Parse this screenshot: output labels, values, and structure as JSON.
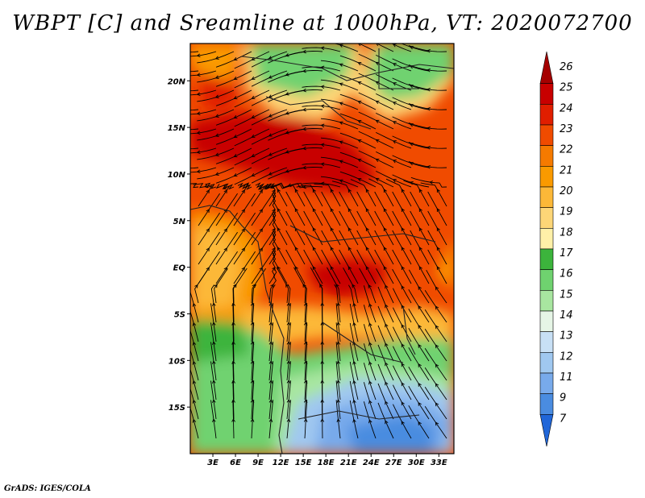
{
  "title": "WBPT [C] and Sreamline at 1000hPa, VT: 2020072700",
  "footer": "GrADS: IGES/COLA",
  "map": {
    "lon_range": [
      0,
      35
    ],
    "lat_range": [
      -20,
      24
    ],
    "lat_ticks": [
      {
        "value": 20,
        "label": "20N"
      },
      {
        "value": 15,
        "label": "15N"
      },
      {
        "value": 10,
        "label": "10N"
      },
      {
        "value": 5,
        "label": "5N"
      },
      {
        "value": 0,
        "label": "EQ"
      },
      {
        "value": -5,
        "label": "5S"
      },
      {
        "value": -10,
        "label": "10S"
      },
      {
        "value": -15,
        "label": "15S"
      }
    ],
    "lon_ticks": [
      {
        "value": 3,
        "label": "3E"
      },
      {
        "value": 6,
        "label": "6E"
      },
      {
        "value": 9,
        "label": "9E"
      },
      {
        "value": 12,
        "label": "12E"
      },
      {
        "value": 15,
        "label": "15E"
      },
      {
        "value": 18,
        "label": "18E"
      },
      {
        "value": 21,
        "label": "21E"
      },
      {
        "value": 24,
        "label": "24E"
      },
      {
        "value": 27,
        "label": "27E"
      },
      {
        "value": 30,
        "label": "30E"
      },
      {
        "value": 33,
        "label": "33E"
      }
    ],
    "field": "Wet bulb potential temperature [C] with streamlines at 1000hPa"
  },
  "colorbar": {
    "levels": [
      "26",
      "25",
      "24",
      "23",
      "22",
      "21",
      "20",
      "19",
      "18",
      "17",
      "16",
      "15",
      "14",
      "13",
      "12",
      "11",
      "9",
      "7"
    ],
    "colors": [
      "#a50000",
      "#c80000",
      "#e01e00",
      "#f04b00",
      "#f57a00",
      "#fa9a00",
      "#fcb838",
      "#fdd677",
      "#fff0a8",
      "#3cb43c",
      "#6fd26f",
      "#a8e6a0",
      "#e6f5e6",
      "#c8e0f5",
      "#a0c8f0",
      "#78aaeb",
      "#4a8ce0",
      "#2066d8"
    ]
  }
}
